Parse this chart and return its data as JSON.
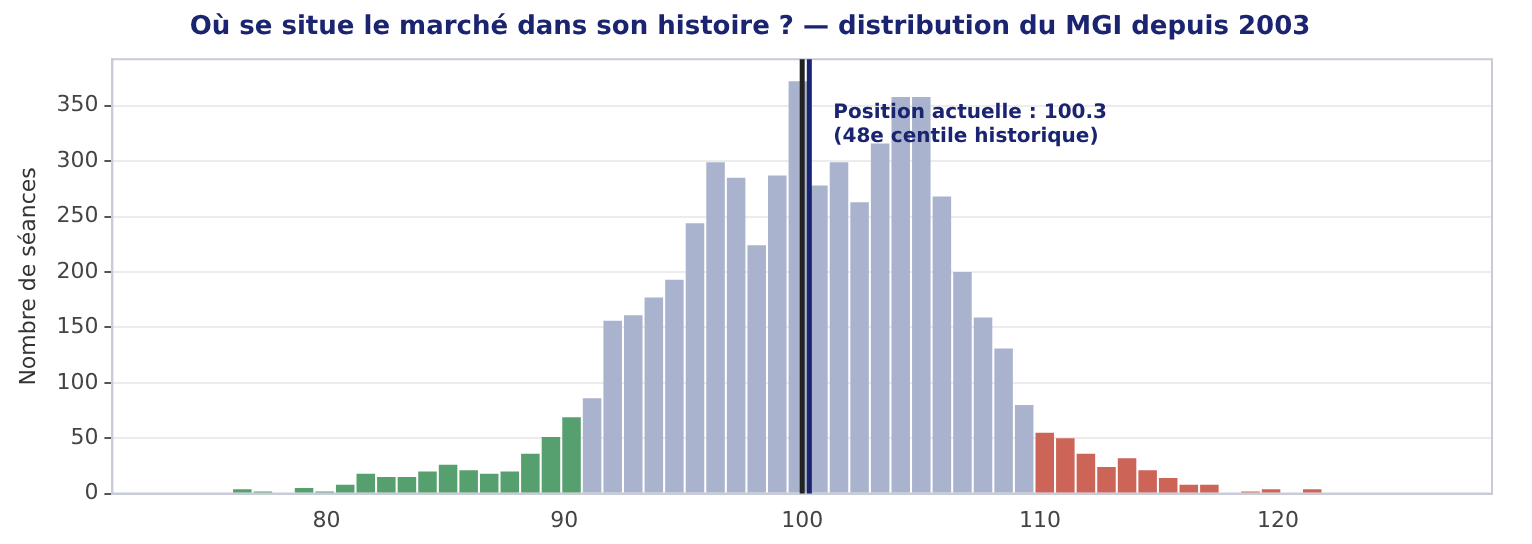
{
  "chart_data": {
    "type": "histogram",
    "title": "Où se situe le marché dans son histoire ? — distribution du MGI depuis 2003",
    "ylabel": "Nombre de séances",
    "bins": [
      76.03,
      76.895,
      77.76,
      78.625,
      79.49,
      80.355,
      81.22,
      82.085,
      82.95,
      83.815,
      84.68,
      85.545,
      86.41,
      87.275,
      88.14,
      89.005,
      89.87,
      90.735,
      91.6,
      92.465,
      93.33,
      94.195,
      95.06,
      95.925,
      96.79,
      97.655,
      98.52,
      99.385,
      100.25,
      101.115,
      101.98,
      102.845,
      103.71,
      104.575,
      105.44,
      106.305,
      107.17,
      108.035,
      108.9,
      109.765,
      110.63,
      111.495,
      112.36,
      113.225,
      114.09,
      114.955,
      115.82,
      116.685,
      117.55,
      118.415,
      119.28,
      120.145,
      121.01,
      121.875,
      122.74
    ],
    "values": [
      4,
      2,
      0,
      5,
      2,
      8,
      18,
      15,
      15,
      20,
      26,
      21,
      18,
      20,
      36,
      51,
      69,
      86,
      156,
      161,
      177,
      193,
      244,
      299,
      285,
      224,
      287,
      372,
      278,
      299,
      263,
      316,
      358,
      358,
      268,
      200,
      159,
      131,
      80,
      55,
      50,
      36,
      24,
      32,
      21,
      14,
      8,
      8,
      0,
      2,
      4,
      0,
      4,
      1
    ],
    "colors": [
      "#56a070",
      "#56a070",
      "#56a070",
      "#56a070",
      "#56a070",
      "#56a070",
      "#56a070",
      "#56a070",
      "#56a070",
      "#56a070",
      "#56a070",
      "#56a070",
      "#56a070",
      "#56a070",
      "#56a070",
      "#56a070",
      "#56a070",
      "#aab3cd",
      "#aab3cd",
      "#aab3cd",
      "#aab3cd",
      "#aab3cd",
      "#aab3cd",
      "#aab3cd",
      "#aab3cd",
      "#aab3cd",
      "#aab3cd",
      "#aab3cd",
      "#aab3cd",
      "#aab3cd",
      "#aab3cd",
      "#aab3cd",
      "#aab3cd",
      "#aab3cd",
      "#aab3cd",
      "#aab3cd",
      "#aab3cd",
      "#aab3cd",
      "#aab3cd",
      "#cc6457",
      "#cc6457",
      "#cc6457",
      "#cc6457",
      "#cc6457",
      "#cc6457",
      "#cc6457",
      "#cc6457",
      "#cc6457",
      "#cc6457",
      "#cc6457",
      "#cc6457",
      "#cc6457",
      "#cc6457",
      "#cc6457"
    ],
    "xlim": [
      71,
      129
    ],
    "xticks": [
      80,
      90,
      100,
      110,
      120
    ],
    "ylim": [
      0,
      392
    ],
    "yticks": [
      0,
      50,
      100,
      150,
      200,
      250,
      300,
      350
    ],
    "ref_lines": [
      {
        "axis": "x",
        "value": 100,
        "color": "#222222"
      },
      {
        "axis": "x",
        "value": 100.3,
        "color": "#1a2470",
        "label": "Position actuelle : 100.3\n(48e centile historique)"
      }
    ],
    "grid": "y",
    "legend": false
  }
}
